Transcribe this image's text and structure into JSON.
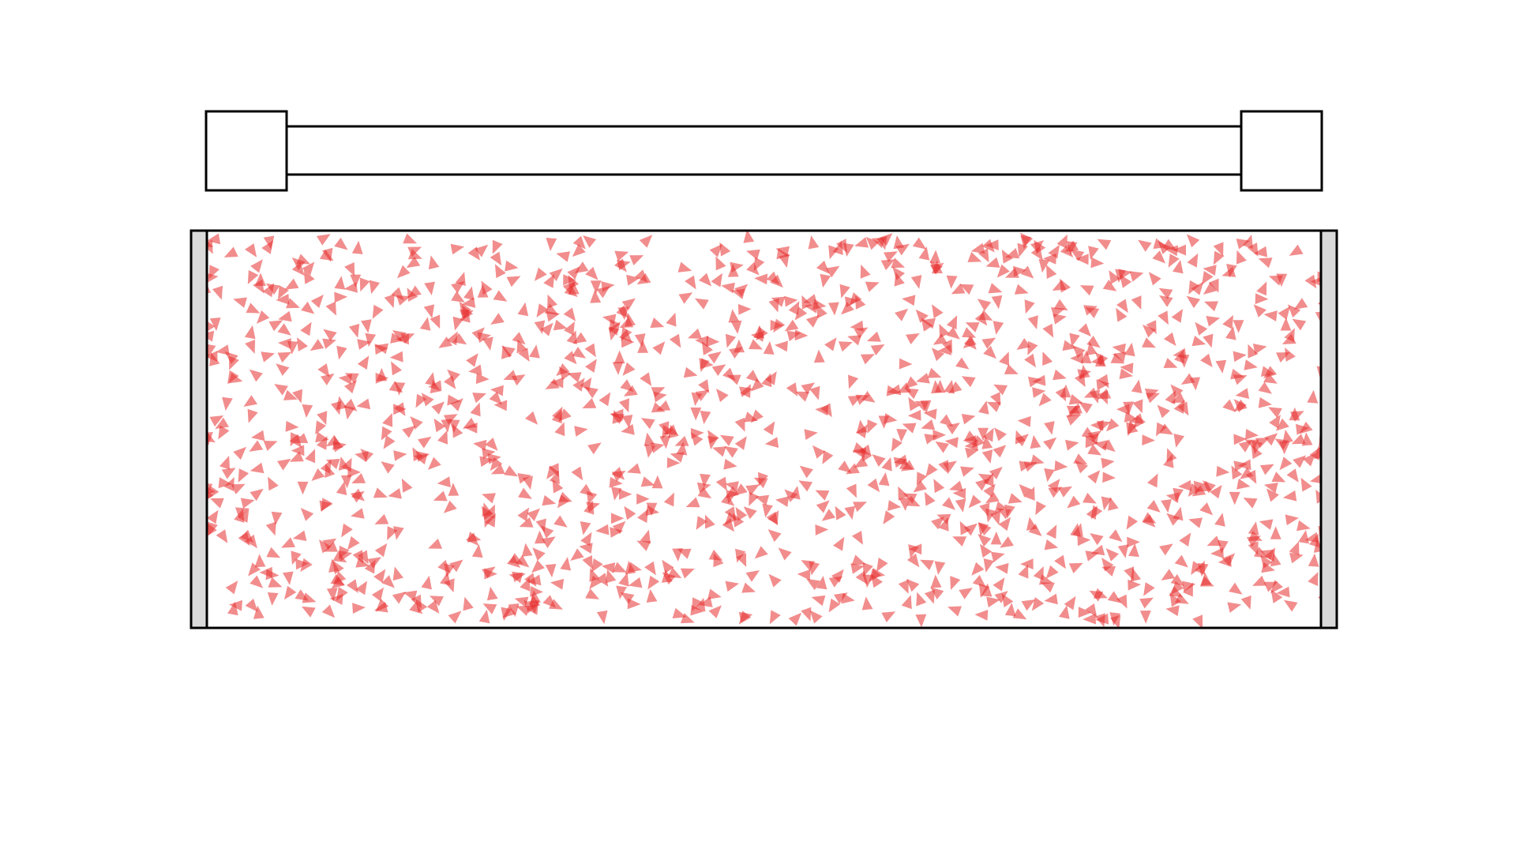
{
  "colors": {
    "background": "#ffffff",
    "outline": "#000000",
    "wall_fill": "#d9d9d9",
    "particle_fill": "#e8302f",
    "particle_opacity": 0.55
  },
  "particles": {
    "shape": "triangle",
    "count": 1400,
    "distribution": "uniform-random"
  }
}
